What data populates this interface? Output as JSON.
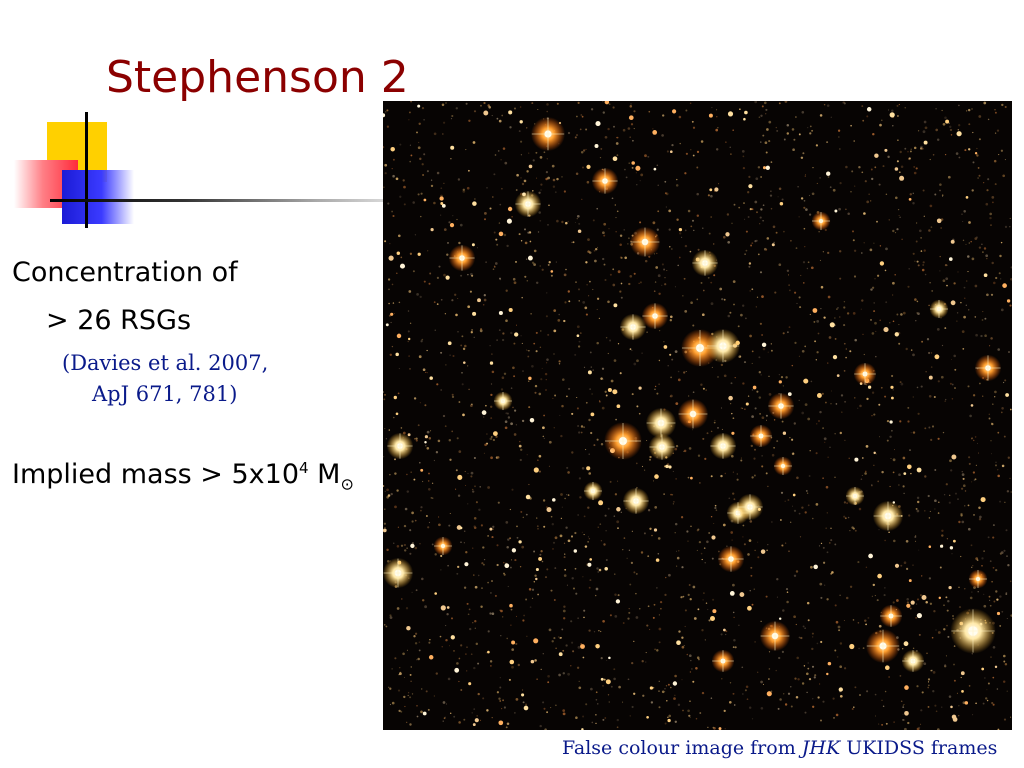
{
  "slide": {
    "title": "Stephenson 2",
    "bullet1": {
      "line1": "Concentration of",
      "line2": "> 26 RSGs"
    },
    "citation": {
      "line1": "(Davies et al. 2007,",
      "line2": "ApJ 671, 781)"
    },
    "bullet2": {
      "prefix": "Implied mass > 5x10",
      "exponent": "4",
      "unit": "M",
      "sun_symbol": "⊙"
    },
    "caption": {
      "before": "False colour image from ",
      "italic": "JHK",
      "after": " UKIDSS frames"
    }
  },
  "colors": {
    "title": "#8b0000",
    "citation": "#0a1a8a",
    "image_background": "#050302"
  }
}
